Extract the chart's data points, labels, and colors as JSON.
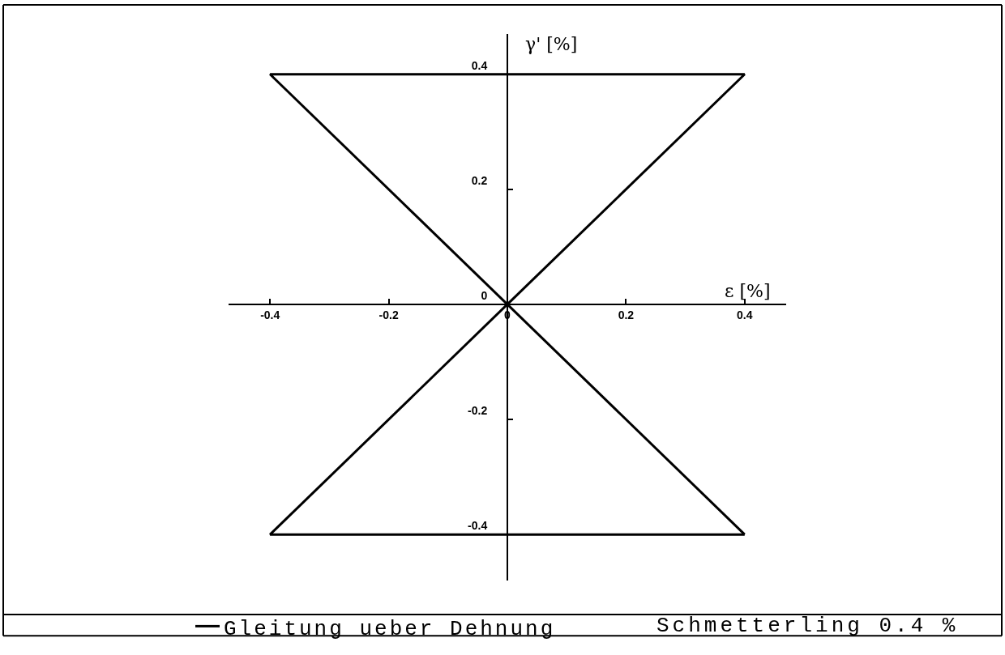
{
  "chart_data": {
    "type": "line",
    "xlabel": "ε [%]",
    "ylabel": "γ' [%]",
    "x": [
      0,
      0.4,
      -0.4,
      0.4,
      -0.4,
      0
    ],
    "series": [
      {
        "name": "Gleitung ueber Dehnung",
        "color": "#000000",
        "values": [
          0,
          0.4,
          0.4,
          -0.4,
          -0.4,
          0
        ]
      }
    ],
    "xlim": [
      -0.47,
      0.47
    ],
    "ylim": [
      -0.48,
      0.47
    ],
    "xticks": [
      -0.4,
      -0.2,
      0,
      0.2,
      0.4
    ],
    "yticks": [
      -0.4,
      -0.2,
      0,
      0.2,
      0.4
    ],
    "grid": false,
    "legend": "bottom",
    "marker": "none",
    "line_style": "solid",
    "annotations": [
      "Schmetterling 0.4 %"
    ]
  }
}
